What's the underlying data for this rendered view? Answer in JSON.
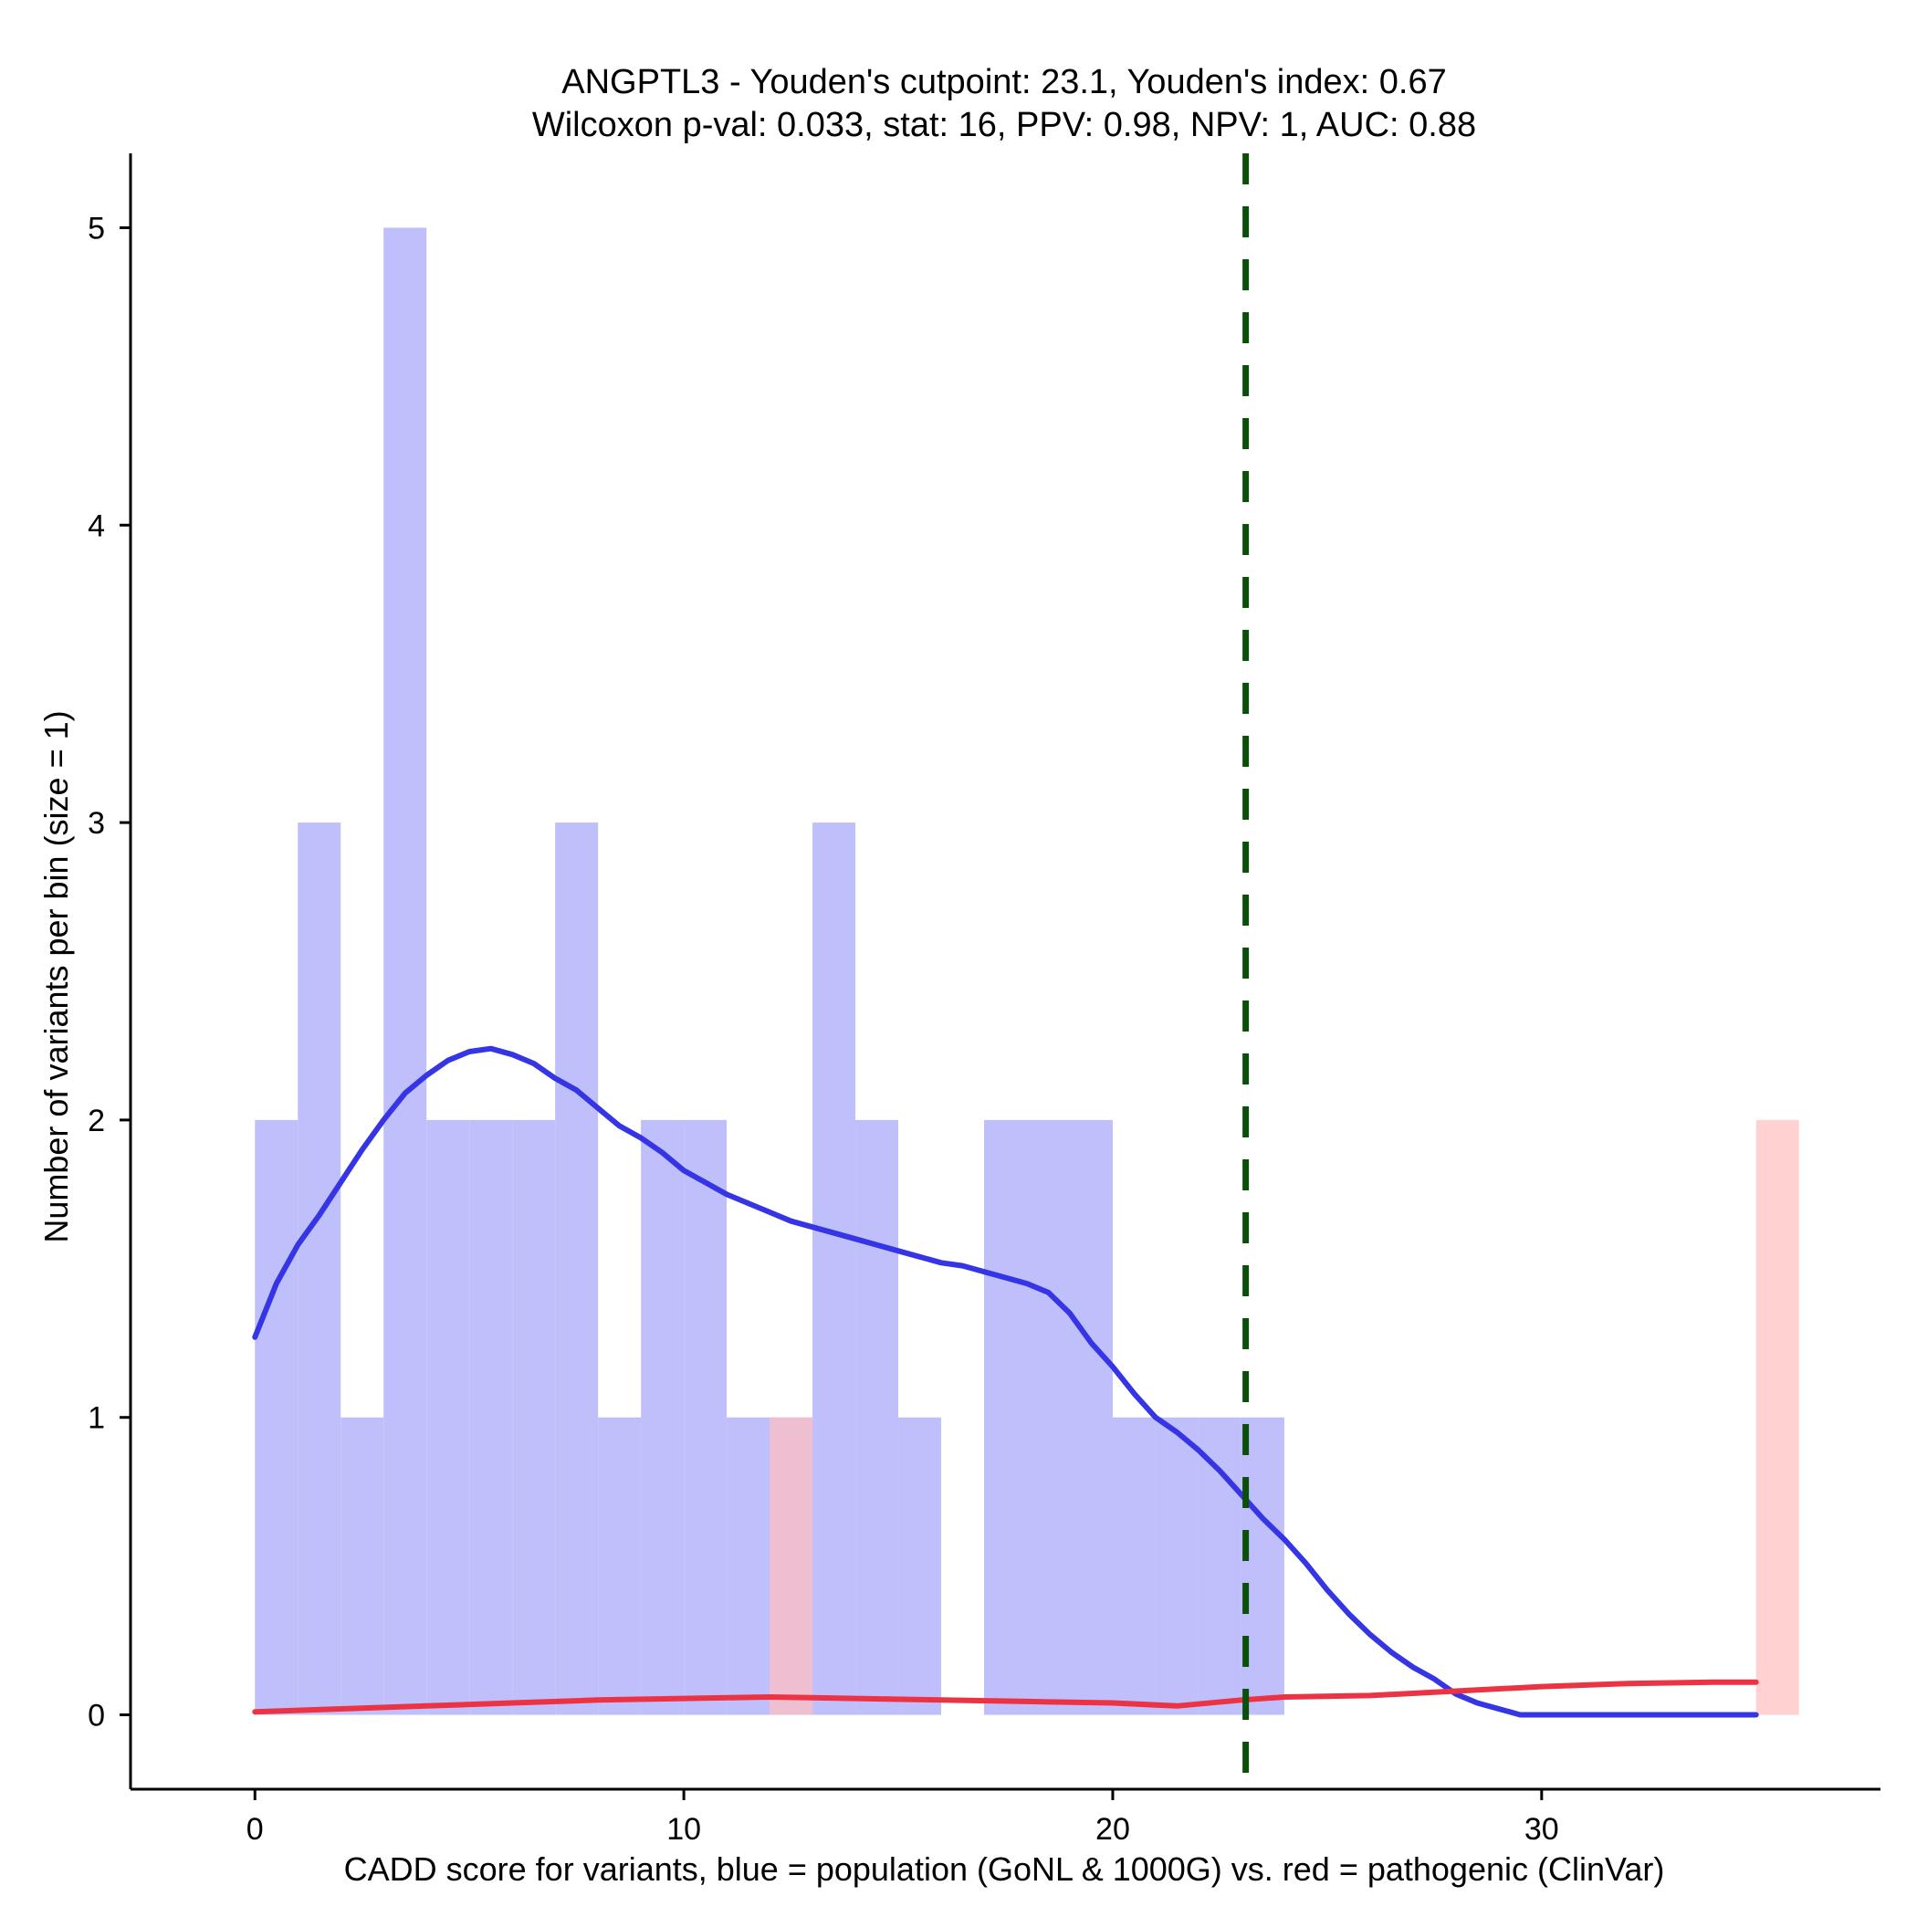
{
  "chart_data": {
    "type": "bar",
    "title_line1": "ANGPTL3 - Youden's cutpoint: 23.1, Youden's index: 0.67",
    "title_line2": "Wilcoxon p-val: 0.033, stat: 16, PPV: 0.98, NPV: 1, AUC: 0.88",
    "xlabel": "CADD score for variants, blue = population (GoNL & 1000G) vs. red = pathogenic (ClinVar)",
    "ylabel": "Number of variants per bin (size = 1)",
    "xlim": [
      -2.9,
      37.9
    ],
    "ylim": [
      -0.25,
      5.25
    ],
    "xticks": [
      0,
      10,
      20,
      30
    ],
    "yticks": [
      0,
      1,
      2,
      3,
      4,
      5
    ],
    "bin_width": 1,
    "colors": {
      "population_bar": "#bfbffc",
      "pathogenic_bar": "#ffbfbf",
      "population_line": "#3535e6",
      "pathogenic_line": "#ec3344",
      "cutpoint_line": "#0b4f0b"
    },
    "series": [
      {
        "name": "population (GoNL & 1000G)",
        "bins": [
          {
            "x": 0,
            "count": 2
          },
          {
            "x": 1,
            "count": 3
          },
          {
            "x": 2,
            "count": 1
          },
          {
            "x": 3,
            "count": 5
          },
          {
            "x": 4,
            "count": 2
          },
          {
            "x": 5,
            "count": 2
          },
          {
            "x": 6,
            "count": 2
          },
          {
            "x": 7,
            "count": 3
          },
          {
            "x": 8,
            "count": 1
          },
          {
            "x": 9,
            "count": 2
          },
          {
            "x": 10,
            "count": 2
          },
          {
            "x": 11,
            "count": 1
          },
          {
            "x": 12,
            "count": 1
          },
          {
            "x": 13,
            "count": 3
          },
          {
            "x": 14,
            "count": 2
          },
          {
            "x": 15,
            "count": 1
          },
          {
            "x": 17,
            "count": 2
          },
          {
            "x": 18,
            "count": 2
          },
          {
            "x": 19,
            "count": 2
          },
          {
            "x": 20,
            "count": 1
          },
          {
            "x": 21,
            "count": 1
          },
          {
            "x": 22,
            "count": 1
          },
          {
            "x": 23,
            "count": 1
          }
        ]
      },
      {
        "name": "pathogenic (ClinVar)",
        "bins": [
          {
            "x": 12,
            "count": 1
          },
          {
            "x": 35,
            "count": 2
          }
        ]
      }
    ],
    "density_lines": [
      {
        "name": "population density",
        "points": [
          [
            0,
            1.27
          ],
          [
            0.5,
            1.45
          ],
          [
            1,
            1.58
          ],
          [
            1.5,
            1.68
          ],
          [
            2,
            1.79
          ],
          [
            2.5,
            1.9
          ],
          [
            3,
            2.0
          ],
          [
            3.5,
            2.09
          ],
          [
            4,
            2.15
          ],
          [
            4.5,
            2.2
          ],
          [
            5,
            2.23
          ],
          [
            5.5,
            2.24
          ],
          [
            6,
            2.22
          ],
          [
            6.5,
            2.19
          ],
          [
            7,
            2.14
          ],
          [
            7.5,
            2.1
          ],
          [
            8,
            2.04
          ],
          [
            8.5,
            1.98
          ],
          [
            9,
            1.94
          ],
          [
            9.5,
            1.89
          ],
          [
            10,
            1.83
          ],
          [
            10.5,
            1.79
          ],
          [
            11,
            1.75
          ],
          [
            11.5,
            1.72
          ],
          [
            12,
            1.69
          ],
          [
            12.5,
            1.66
          ],
          [
            13,
            1.64
          ],
          [
            13.5,
            1.62
          ],
          [
            14,
            1.6
          ],
          [
            14.5,
            1.58
          ],
          [
            15,
            1.56
          ],
          [
            15.5,
            1.54
          ],
          [
            16,
            1.52
          ],
          [
            16.5,
            1.51
          ],
          [
            17,
            1.49
          ],
          [
            17.5,
            1.47
          ],
          [
            18,
            1.45
          ],
          [
            18.5,
            1.42
          ],
          [
            19,
            1.35
          ],
          [
            19.5,
            1.25
          ],
          [
            20,
            1.17
          ],
          [
            20.5,
            1.08
          ],
          [
            21,
            1.0
          ],
          [
            21.5,
            0.95
          ],
          [
            22,
            0.89
          ],
          [
            22.5,
            0.82
          ],
          [
            23,
            0.74
          ],
          [
            23.5,
            0.66
          ],
          [
            24,
            0.59
          ],
          [
            24.5,
            0.51
          ],
          [
            25,
            0.42
          ],
          [
            25.5,
            0.34
          ],
          [
            26,
            0.27
          ],
          [
            26.5,
            0.21
          ],
          [
            27,
            0.16
          ],
          [
            27.5,
            0.12
          ],
          [
            28,
            0.07
          ],
          [
            28.5,
            0.04
          ],
          [
            29,
            0.02
          ],
          [
            29.5,
            0.0
          ],
          [
            30,
            0.0
          ],
          [
            31,
            0.0
          ],
          [
            32,
            0.0
          ],
          [
            33,
            0.0
          ],
          [
            34,
            0.0
          ],
          [
            35,
            0.0
          ]
        ]
      },
      {
        "name": "pathogenic density",
        "points": [
          [
            0,
            0.01
          ],
          [
            2,
            0.02
          ],
          [
            4,
            0.03
          ],
          [
            6,
            0.04
          ],
          [
            8,
            0.05
          ],
          [
            10,
            0.055
          ],
          [
            12,
            0.06
          ],
          [
            14,
            0.055
          ],
          [
            16,
            0.05
          ],
          [
            18,
            0.045
          ],
          [
            20,
            0.04
          ],
          [
            21.5,
            0.03
          ],
          [
            23,
            0.05
          ],
          [
            24,
            0.06
          ],
          [
            26,
            0.065
          ],
          [
            28,
            0.08
          ],
          [
            30,
            0.095
          ],
          [
            32,
            0.105
          ],
          [
            34,
            0.11
          ],
          [
            35,
            0.11
          ]
        ]
      }
    ],
    "cutpoint": 23.1
  }
}
